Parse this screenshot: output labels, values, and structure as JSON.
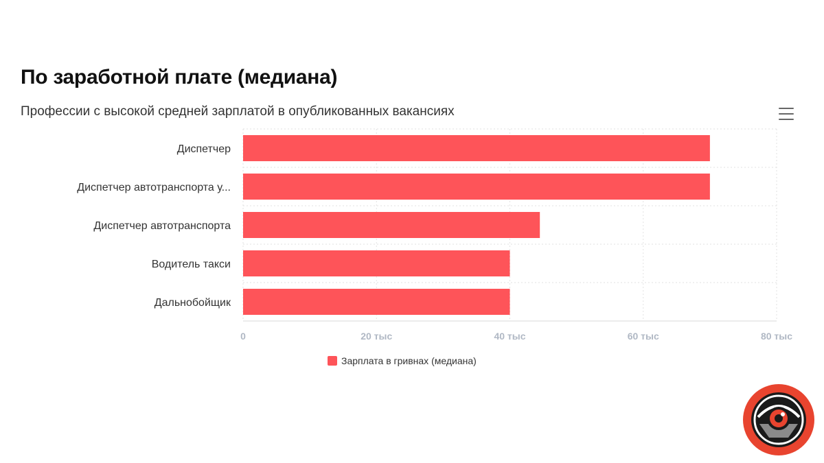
{
  "header": {
    "title": "По заработной плате (медиана)",
    "subtitle": "Профессии с высокой средней зарплатой в опубликованных вакансиях",
    "menu_icon": "hamburger-menu-icon"
  },
  "colors": {
    "bar": "#fe5459",
    "grid": "#e2e2e2",
    "logo_ring": "#e8442f",
    "logo_inner": "#1a1a1a"
  },
  "chart_data": {
    "type": "bar",
    "orientation": "horizontal",
    "categories": [
      "Диспетчер",
      "Диспетчер автотранспорта у...",
      "Диспетчер автотранспорта",
      "Водитель такси",
      "Дальнобойщик"
    ],
    "series": [
      {
        "name": "Зарплата в гривнах (медиана)",
        "values": [
          70000,
          70000,
          44500,
          40000,
          40000
        ]
      }
    ],
    "xlim": [
      0,
      80000
    ],
    "ticks": [
      {
        "value": 0,
        "label": "0"
      },
      {
        "value": 20000,
        "label": "20 тыс"
      },
      {
        "value": 40000,
        "label": "40 тыс"
      },
      {
        "value": 60000,
        "label": "60 тыс"
      },
      {
        "value": 80000,
        "label": "80 тыс"
      }
    ],
    "grid": true,
    "legend": "bottom-center"
  },
  "logo": {
    "icon": "eye-logo-icon"
  }
}
